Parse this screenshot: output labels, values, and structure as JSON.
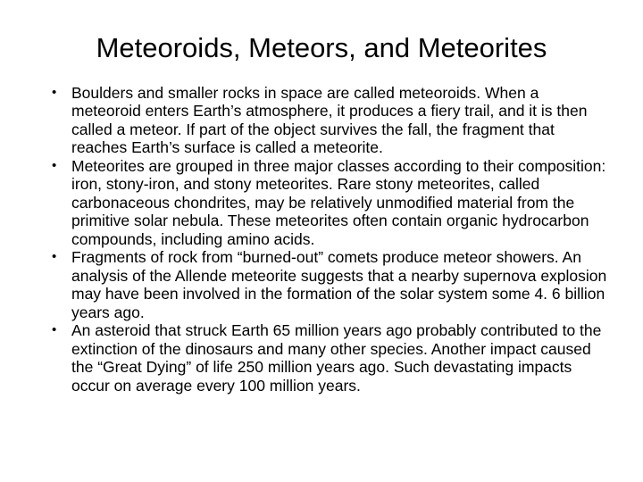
{
  "slide": {
    "title": "Meteoroids, Meteors, and Meteorites",
    "title_fontsize": 31,
    "title_color": "#000000",
    "background_color": "#ffffff",
    "body_fontsize": 17.5,
    "body_color": "#000000",
    "bullets": [
      "Boulders and smaller rocks in space are called meteoroids. When a meteoroid enters Earth’s atmosphere, it produces a fiery trail, and it is then called a meteor. If part of the object survives the fall, the fragment that reaches Earth’s surface is called a meteorite.",
      "Meteorites are grouped in three major classes according to their composition: iron, stony-iron, and stony meteorites. Rare stony meteorites, called carbonaceous chondrites, may be relatively unmodified material from the primitive solar nebula. These meteorites often contain organic hydrocarbon compounds, including amino acids.",
      "Fragments of rock from “burned-out” comets produce meteor showers. An analysis of the Allende meteorite suggests that a nearby supernova explosion may have been involved in the formation of the solar system some 4. 6 billion years ago.",
      "An asteroid that struck Earth 65 million years ago probably contributed to the extinction of the dinosaurs and many other species. Another impact caused the “Great Dying” of life 250 million years ago. Such devastating impacts occur on average every 100 million years."
    ]
  }
}
